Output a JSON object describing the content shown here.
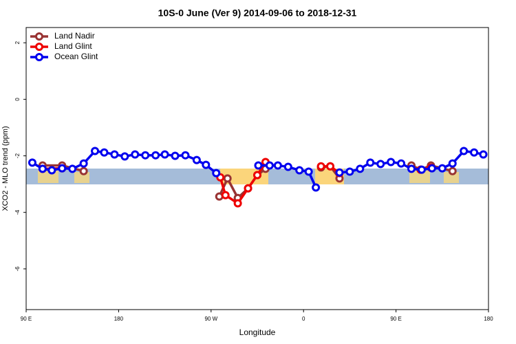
{
  "chart_data": {
    "type": "line",
    "title": "10S-0 June (Ver 9)   2014-09-06 to 2018-12-31",
    "xlabel": "Longitude",
    "ylabel": "XCO2 - MLO trend (ppm)",
    "xlim": [
      90,
      540
    ],
    "ylim": [
      -7.44,
      2.54
    ],
    "xticks": [
      {
        "value": 90,
        "label": "90 E"
      },
      {
        "value": 180,
        "label": "180"
      },
      {
        "value": 270,
        "label": "90 W"
      },
      {
        "value": 360,
        "label": "0"
      },
      {
        "value": 450,
        "label": "90 E"
      },
      {
        "value": 540,
        "label": "180"
      }
    ],
    "yticks": [
      2,
      0,
      -2,
      -4,
      -6
    ],
    "legend": "top-left",
    "series": [
      {
        "name": "Land Nadir",
        "color": "#993333",
        "x": [
          106,
          125,
          146,
          null,
          278,
          286,
          296,
          306,
          315,
          323,
          null,
          377,
          386,
          395,
          null,
          465,
          474,
          484,
          505
        ],
        "values": [
          -2.34,
          -2.34,
          -2.54,
          null,
          -3.44,
          -2.8,
          -3.49,
          -3.15,
          -2.68,
          -2.46,
          null,
          -2.41,
          -2.37,
          -2.8,
          null,
          -2.34,
          -2.49,
          -2.34,
          -2.54
        ]
      },
      {
        "name": "Land Glint",
        "color": "#ee0000",
        "x": [
          106,
          125,
          null,
          279,
          284,
          296,
          306,
          315,
          323,
          null,
          377,
          386,
          395,
          null,
          474,
          484
        ],
        "values": [
          -2.46,
          -2.44,
          null,
          -2.76,
          -3.39,
          -3.68,
          -3.15,
          -2.68,
          -2.22,
          null,
          -2.37,
          -2.37,
          -2.61,
          null,
          -2.49,
          -2.42
        ]
      },
      {
        "name": "Ocean Glint",
        "color": "#0000ee",
        "x": [
          96,
          106,
          115,
          125,
          135,
          146,
          157,
          166,
          176,
          186,
          196,
          206,
          216,
          225,
          235,
          245,
          256,
          265,
          275,
          null,
          316,
          327,
          335,
          345,
          356,
          365,
          372,
          null,
          395,
          405,
          415,
          425,
          435,
          445,
          455,
          465,
          475,
          485,
          495,
          505,
          516,
          526,
          535
        ],
        "values": [
          -2.24,
          -2.46,
          -2.51,
          -2.44,
          -2.46,
          -2.27,
          -1.83,
          -1.88,
          -1.95,
          -2.02,
          -1.95,
          -1.98,
          -1.98,
          -1.95,
          -2.0,
          -1.98,
          -2.15,
          -2.32,
          -2.61,
          null,
          -2.34,
          -2.34,
          -2.34,
          -2.39,
          -2.51,
          -2.56,
          -3.12,
          null,
          -2.59,
          -2.56,
          -2.46,
          -2.24,
          -2.29,
          -2.22,
          -2.27,
          -2.46,
          -2.49,
          -2.44,
          -2.44,
          -2.27,
          -1.83,
          -1.88,
          -1.95
        ]
      }
    ]
  }
}
